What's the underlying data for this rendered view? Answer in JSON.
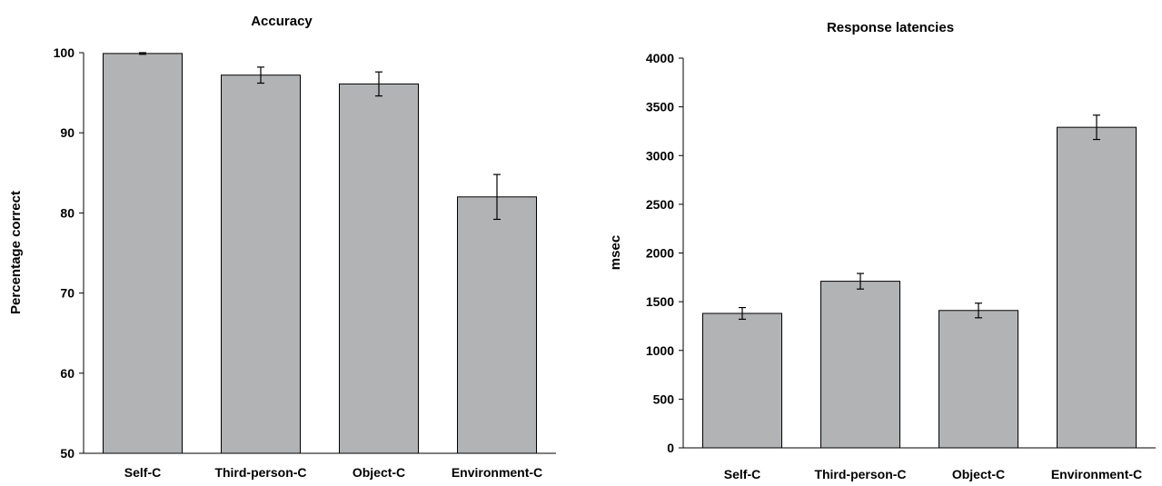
{
  "chart_data": [
    {
      "type": "bar",
      "title": "Accuracy",
      "ylabel": "Percentage correct",
      "xlabel": "",
      "categories": [
        "Self-C",
        "Third-person-C",
        "Object-C",
        "Environment-C"
      ],
      "values": [
        99.9,
        97.2,
        96.1,
        82.0
      ],
      "errors": [
        0.1,
        1.0,
        1.5,
        2.8
      ],
      "ylim": [
        50,
        100
      ],
      "yticks": [
        50,
        60,
        70,
        80,
        90,
        100
      ],
      "ytick_labels": [
        "50",
        "60",
        "70",
        "80",
        "90",
        "100"
      ],
      "bar_color": "#b2b3b5",
      "grid": false
    },
    {
      "type": "bar",
      "title": "Response latencies",
      "ylabel": "msec",
      "xlabel": "",
      "categories": [
        "Self-C",
        "Third-person-C",
        "Object-C",
        "Environment-C"
      ],
      "values": [
        1380,
        1710,
        1410,
        3290
      ],
      "errors": [
        60,
        80,
        75,
        125
      ],
      "ylim": [
        0,
        4000
      ],
      "yticks": [
        0,
        500,
        1000,
        1500,
        2000,
        2500,
        3000,
        3500,
        4000
      ],
      "ytick_labels": [
        "0",
        "500",
        "1000",
        "1500",
        "2000",
        "2500",
        "3000",
        "3500",
        "4000"
      ],
      "bar_color": "#b2b3b5",
      "grid": false
    }
  ]
}
